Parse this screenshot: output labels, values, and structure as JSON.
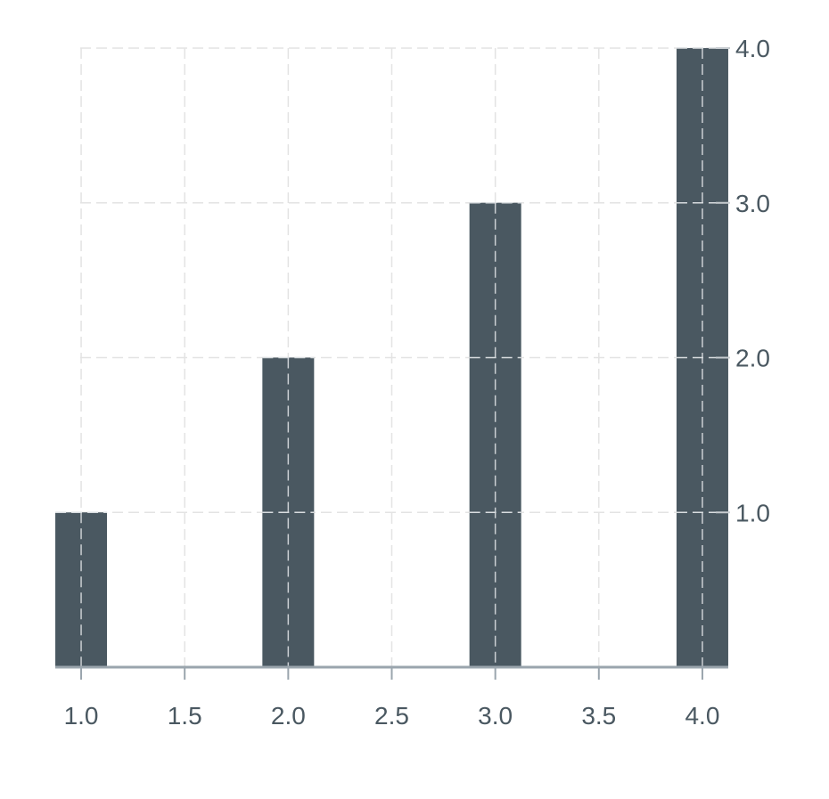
{
  "chart_data": {
    "type": "bar",
    "x": [
      1.0,
      2.0,
      3.0,
      4.0
    ],
    "values": [
      1.0,
      2.0,
      3.0,
      4.0
    ],
    "xlim": [
      0.875,
      4.125
    ],
    "ylim": [
      0,
      4.0
    ],
    "x_ticks": [
      1.0,
      1.5,
      2.0,
      2.5,
      3.0,
      3.5,
      4.0
    ],
    "x_tick_labels": [
      "1.0",
      "1.5",
      "2.0",
      "2.5",
      "3.0",
      "3.5",
      "4.0"
    ],
    "y_ticks": [
      1.0,
      2.0,
      3.0,
      4.0
    ],
    "y_tick_labels": [
      "1.0",
      "2.0",
      "3.0",
      "4.0"
    ],
    "y_axis_side": "right",
    "grid": true,
    "title": "",
    "xlabel": "",
    "ylabel": ""
  },
  "colors": {
    "bar": "#4a5861",
    "grid": "#e3e3e3",
    "axis": "#9aa5ad",
    "tick_label": "#4a5861",
    "background": "#ffffff"
  }
}
